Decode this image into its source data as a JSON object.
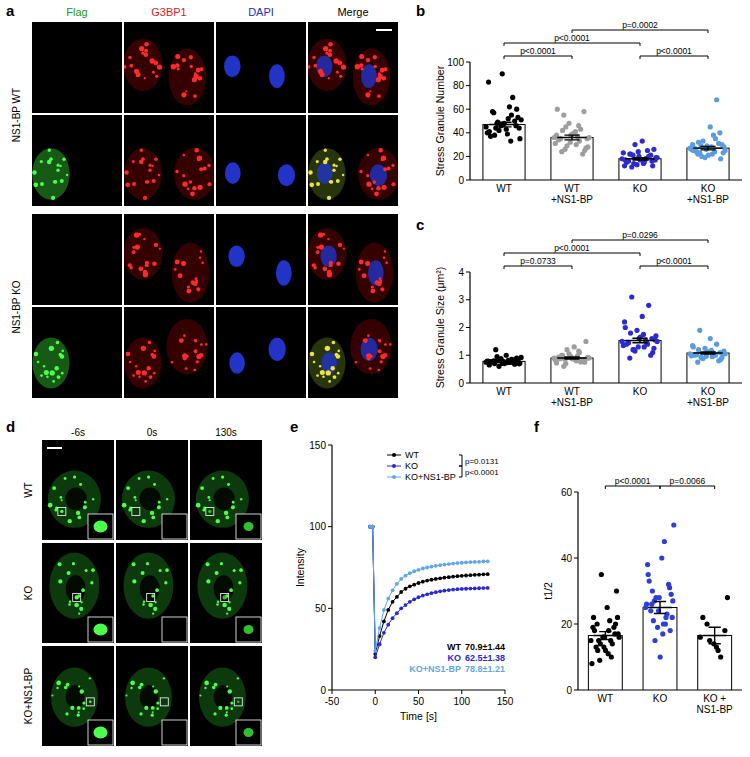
{
  "figure": {
    "panel_labels": [
      "a",
      "b",
      "c",
      "d",
      "e",
      "f"
    ],
    "panel_a": {
      "columns": [
        "Flag",
        "G3BP1",
        "DAPI",
        "Merge"
      ],
      "row_groups": [
        "NS1-BP WT",
        "NS1-BP KO"
      ]
    },
    "panel_d": {
      "columns": [
        "-6s",
        "0s",
        "130s"
      ],
      "rows": [
        "WT",
        "KO",
        "KO+NS1-BP"
      ]
    }
  },
  "chart_data": [
    {
      "type": "bar",
      "y_label": "Stress Granule Number",
      "categories": [
        "WT",
        "WT\n+NS1-BP",
        "KO",
        "KO\n+NS1-BP"
      ],
      "values": [
        47,
        36,
        18,
        27
      ],
      "errors": [
        2,
        2,
        1,
        1.5
      ],
      "colors": [
        "#000000",
        "#9e9e9e",
        "#2b2bd1",
        "#5b9be0"
      ],
      "ylim": [
        0,
        100
      ],
      "yticks": [
        0,
        20,
        40,
        60,
        80,
        100
      ],
      "points": [
        [
          45,
          52,
          38,
          60,
          47,
          41,
          55,
          49,
          35,
          43,
          58,
          50,
          46,
          40,
          62,
          44,
          53,
          48,
          37,
          70,
          42,
          51,
          39,
          57,
          46,
          90,
          83,
          33,
          48,
          44
        ],
        [
          36,
          30,
          42,
          25,
          38,
          60,
          33,
          45,
          28,
          40,
          35,
          22,
          48,
          31,
          37,
          55,
          27,
          39,
          34,
          43,
          29,
          36,
          41,
          24,
          58,
          32,
          38,
          46,
          26,
          35
        ],
        [
          18,
          15,
          22,
          12,
          20,
          17,
          25,
          14,
          19,
          33,
          16,
          21,
          13,
          23,
          18,
          11,
          26,
          17,
          15,
          20,
          30,
          19,
          14,
          22,
          16,
          24,
          12,
          18,
          21,
          17
        ],
        [
          27,
          22,
          32,
          18,
          29,
          25,
          35,
          20,
          28,
          45,
          24,
          31,
          19,
          26,
          38,
          23,
          30,
          21,
          27,
          68,
          33,
          25,
          28,
          22,
          40,
          26,
          30,
          24,
          29,
          23
        ]
      ],
      "brackets": [
        {
          "from": 0,
          "to": 2,
          "label": "p<0.0001"
        },
        {
          "from": 2,
          "to": 3,
          "label": "p<0.0001"
        },
        {
          "from": 0,
          "to": 1,
          "label": "p<0.0001"
        },
        {
          "from": 1,
          "to": 3,
          "label": "p=0.0002"
        }
      ]
    },
    {
      "type": "bar",
      "y_label": "Stress Granule Size (μm²)",
      "categories": [
        "WT",
        "WT\n+NS1-BP",
        "KO",
        "KO\n+NS1-BP"
      ],
      "values": [
        0.78,
        0.9,
        1.53,
        1.08
      ],
      "errors": [
        0.03,
        0.04,
        0.08,
        0.04
      ],
      "colors": [
        "#000000",
        "#9e9e9e",
        "#2b2bd1",
        "#5b9be0"
      ],
      "ylim": [
        0,
        4
      ],
      "yticks": [
        0,
        1,
        2,
        3,
        4
      ],
      "points": [
        [
          0.75,
          0.82,
          0.7,
          0.9,
          0.78,
          0.65,
          0.85,
          0.8,
          0.72,
          1.0,
          0.76,
          0.68,
          0.88,
          0.79,
          0.74,
          1.2,
          0.81,
          0.7,
          0.77,
          0.83,
          0.6,
          0.92,
          0.73,
          0.8,
          0.86,
          0.71,
          0.78,
          0.75,
          0.95,
          0.69
        ],
        [
          0.9,
          0.8,
          1.0,
          0.75,
          0.95,
          0.85,
          1.1,
          0.7,
          0.92,
          1.3,
          0.88,
          0.78,
          1.05,
          0.82,
          0.98,
          0.6,
          1.5,
          0.87,
          0.93,
          0.76,
          1.2,
          0.9,
          0.84,
          1.0,
          0.8,
          0.96,
          0.72,
          1.15,
          0.86,
          0.9
        ],
        [
          1.5,
          1.3,
          1.8,
          1.1,
          1.6,
          2.0,
          1.4,
          1.2,
          1.7,
          2.4,
          1.45,
          1.0,
          1.9,
          1.35,
          1.55,
          3.1,
          1.25,
          1.65,
          1.4,
          2.8,
          1.15,
          1.5,
          1.75,
          0.9,
          1.6,
          1.3,
          2.2,
          1.45,
          1.2,
          1.55
        ],
        [
          1.05,
          0.95,
          1.2,
          0.85,
          1.1,
          1.3,
          1.0,
          0.9,
          1.15,
          1.6,
          1.02,
          0.8,
          1.25,
          0.98,
          1.08,
          1.9,
          0.92,
          1.12,
          1.0,
          1.4,
          0.88,
          1.05,
          1.18,
          0.75,
          1.1,
          0.96,
          1.35,
          1.03,
          0.93,
          1.07
        ]
      ],
      "brackets": [
        {
          "from": 0,
          "to": 2,
          "label": "p<0.0001"
        },
        {
          "from": 2,
          "to": 3,
          "label": "p<0.0001"
        },
        {
          "from": 0,
          "to": 1,
          "label": "p=0.0733"
        },
        {
          "from": 1,
          "to": 3,
          "label": "p=0.0296"
        }
      ]
    },
    {
      "type": "line",
      "x_label": "Time [s]",
      "y_label": "Intensity",
      "marker": "circle",
      "x": [
        -6,
        -3,
        0,
        5,
        10,
        15,
        20,
        25,
        30,
        35,
        40,
        45,
        50,
        55,
        60,
        65,
        70,
        75,
        80,
        85,
        90,
        95,
        100,
        105,
        110,
        115,
        120,
        125,
        130
      ],
      "series": [
        {
          "name": "WT",
          "color": "#000000",
          "annotation": "70.9±1.44",
          "values": [
            100,
            100,
            22,
            33,
            42,
            49,
            54,
            57,
            60,
            62,
            63.5,
            64.5,
            65.5,
            66.3,
            67,
            67.5,
            68,
            68.4,
            68.8,
            69.1,
            69.4,
            69.7,
            69.9,
            70.1,
            70.3,
            70.5,
            70.6,
            70.8,
            70.9
          ]
        },
        {
          "name": "KO",
          "color": "#2828d0",
          "annotation": "62.5±1.38",
          "values": [
            100,
            100,
            20,
            28,
            35,
            40,
            44,
            47,
            50,
            52,
            54,
            55.5,
            56.8,
            57.8,
            58.6,
            59.3,
            59.9,
            60.4,
            60.8,
            61.2,
            61.5,
            61.7,
            61.9,
            62.0,
            62.1,
            62.2,
            62.3,
            62.4,
            62.5
          ]
        },
        {
          "name": "KO+NS1-BP",
          "color": "#5fa8e8",
          "annotation": "78.8±1.21",
          "values": [
            100,
            100,
            24,
            38,
            49,
            56,
            61,
            65,
            68,
            70,
            71.5,
            72.7,
            73.6,
            74.4,
            75,
            75.5,
            76,
            76.4,
            76.8,
            77.1,
            77.4,
            77.7,
            77.9,
            78.1,
            78.3,
            78.4,
            78.5,
            78.7,
            78.8
          ]
        }
      ],
      "xlim": [
        -50,
        150
      ],
      "xticks": [
        -50,
        0,
        50,
        100,
        150
      ],
      "ylim": [
        0,
        150
      ],
      "yticks": [
        0,
        50,
        100,
        150
      ],
      "legend": "top",
      "comparisons": [
        {
          "from": 0,
          "to": 1,
          "label": "p=0.0131"
        },
        {
          "from": 1,
          "to": 2,
          "label": "p<0.0001"
        }
      ]
    },
    {
      "type": "bar",
      "y_label": "t1/2",
      "categories": [
        "WT",
        "KO",
        "KO +\nNS1-BP"
      ],
      "values": [
        16.5,
        25,
        16.5
      ],
      "errors": [
        1.2,
        1.8,
        2.5
      ],
      "colors": [
        "#000000",
        "#2e3fd9",
        "#000000"
      ],
      "ylim": [
        0,
        60
      ],
      "yticks": [
        0,
        20,
        40,
        60
      ],
      "points": [
        [
          15,
          18,
          12,
          20,
          16,
          22,
          10,
          14,
          17,
          25,
          13,
          19,
          16,
          8,
          21,
          15,
          30,
          12,
          18,
          14,
          35,
          16,
          11,
          20,
          17,
          13,
          19,
          15,
          9,
          22
        ],
        [
          25,
          20,
          30,
          18,
          28,
          35,
          22,
          15,
          27,
          40,
          24,
          32,
          19,
          26,
          45,
          21,
          29,
          10,
          33,
          23,
          28,
          50,
          17,
          26,
          31,
          24,
          38,
          20,
          27,
          22
        ],
        [
          16,
          12,
          20,
          18,
          14,
          22,
          10,
          15,
          28,
          13
        ]
      ],
      "brackets": [
        {
          "from": 0,
          "to": 1,
          "label": "p<0.0001"
        },
        {
          "from": 1,
          "to": 2,
          "label": "p=0.0066"
        }
      ]
    }
  ]
}
